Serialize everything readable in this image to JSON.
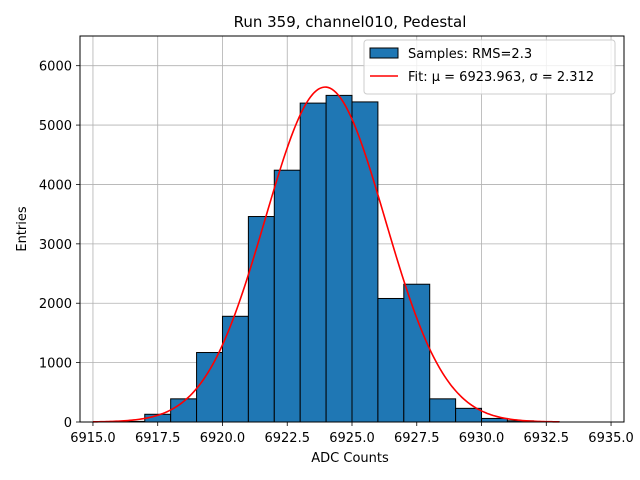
{
  "chart_data": {
    "type": "bar",
    "title": "Run 359, channel010, Pedestal",
    "xlabel": "ADC Counts",
    "ylabel": "Entries",
    "xlim": [
      6914.5,
      6935.5
    ],
    "ylim": [
      0,
      6500
    ],
    "xticks": [
      6915.0,
      6917.5,
      6920.0,
      6922.5,
      6925.0,
      6927.5,
      6930.0,
      6932.5,
      6935.0
    ],
    "xtick_labels": [
      "6915.0",
      "6917.5",
      "6920.0",
      "6922.5",
      "6925.0",
      "6927.5",
      "6930.0",
      "6932.5",
      "6935.0"
    ],
    "yticks": [
      0,
      1000,
      2000,
      3000,
      4000,
      5000,
      6000
    ],
    "ytick_labels": [
      "0",
      "1000",
      "2000",
      "3000",
      "4000",
      "5000",
      "6000"
    ],
    "grid": true,
    "legend_position": "top-right",
    "series": [
      {
        "name": "Samples: RMS=2.3",
        "kind": "histogram",
        "color": "#1f77b4",
        "edgecolor": "#000000",
        "bin_width": 1.0,
        "bin_starts": [
          6916,
          6917,
          6918,
          6919,
          6920,
          6921,
          6922,
          6923,
          6924,
          6925,
          6926,
          6927,
          6928,
          6929,
          6930,
          6931,
          6932
        ],
        "values": [
          10,
          130,
          390,
          1170,
          1780,
          3460,
          4240,
          5370,
          5500,
          5390,
          2080,
          2320,
          390,
          230,
          60,
          20,
          5
        ]
      },
      {
        "name": "Fit: μ = 6923.963, σ = 2.312",
        "kind": "gaussian-fit",
        "color": "#ff0000",
        "mu": 6923.963,
        "sigma": 2.312,
        "amplitude": 5640,
        "x_range": [
          6915.0,
          6933.0
        ]
      }
    ]
  }
}
